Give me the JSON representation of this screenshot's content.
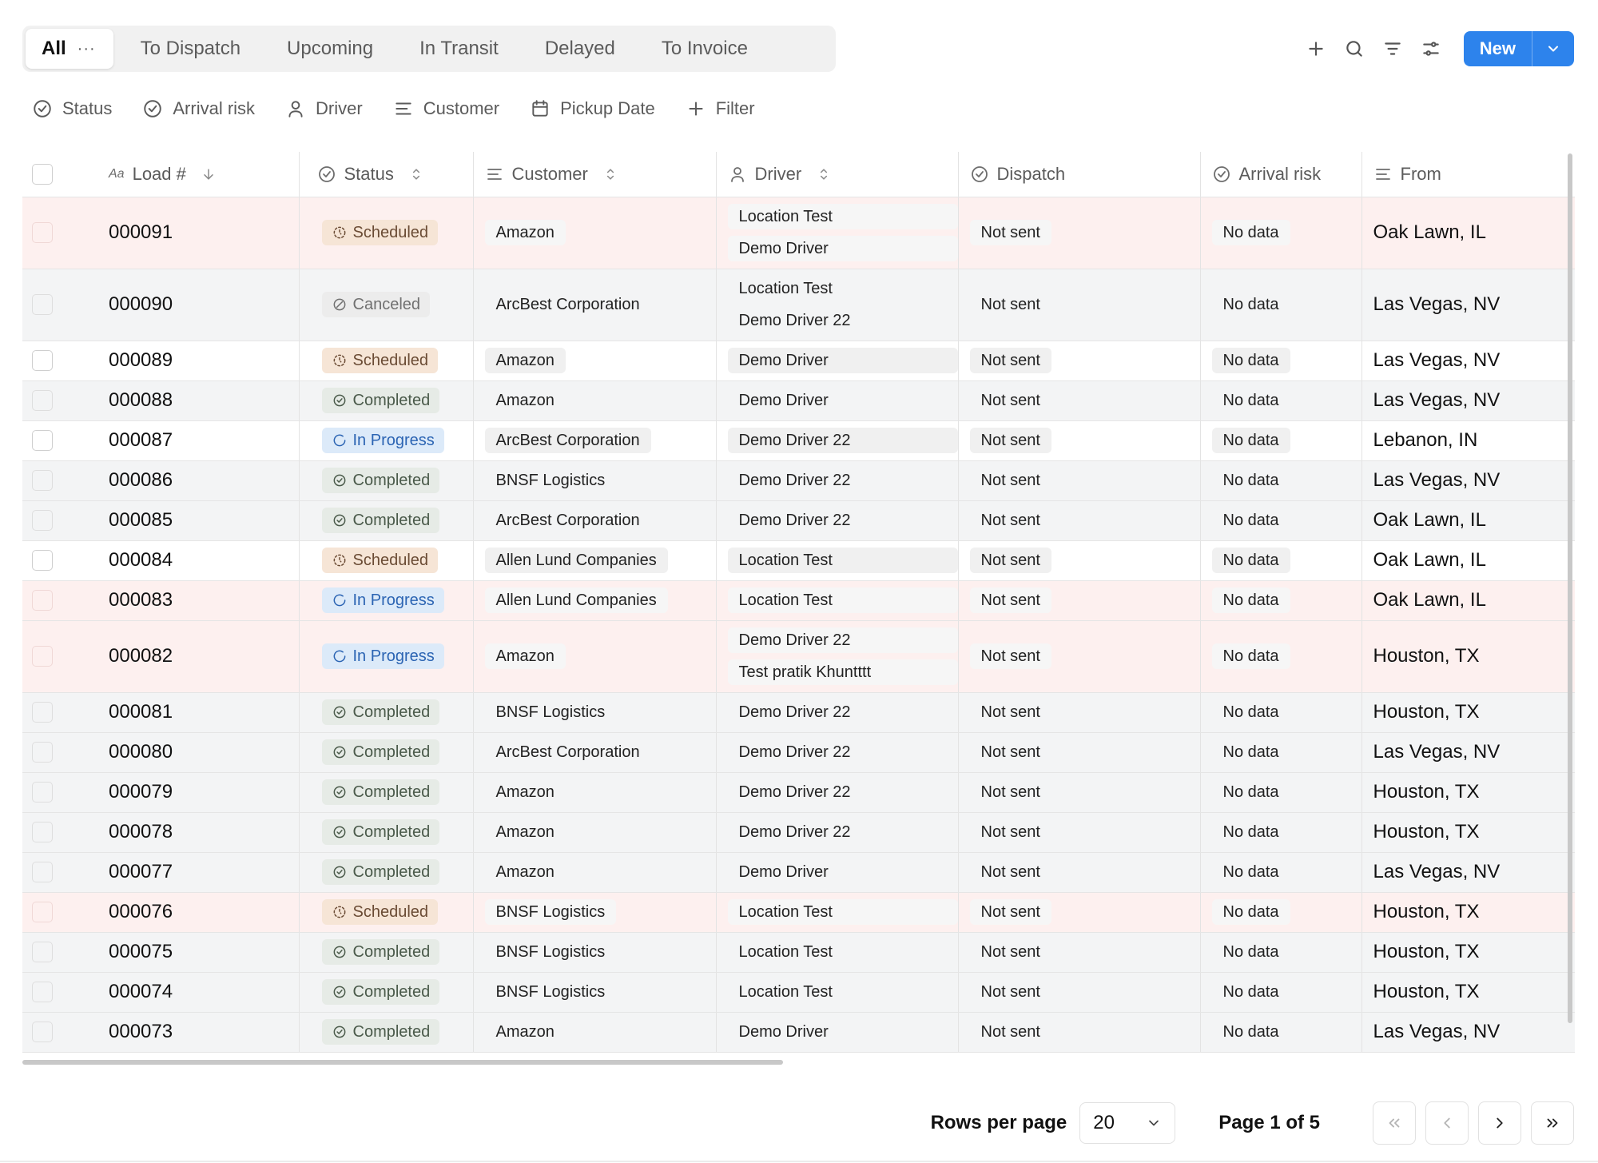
{
  "tabs": [
    {
      "label": "All",
      "more": "···",
      "active": true
    },
    {
      "label": "To Dispatch"
    },
    {
      "label": "Upcoming"
    },
    {
      "label": "In Transit"
    },
    {
      "label": "Delayed"
    },
    {
      "label": "To Invoice"
    }
  ],
  "toolbar": {
    "new_label": "New"
  },
  "filters": [
    "Status",
    "Arrival risk",
    "Driver",
    "Customer",
    "Pickup Date",
    "Filter"
  ],
  "columns": {
    "load": "Load #",
    "load_prefix": "Aa",
    "status": "Status",
    "customer": "Customer",
    "driver": "Driver",
    "dispatch": "Dispatch",
    "arrival_risk": "Arrival risk",
    "from": "From"
  },
  "rows": [
    {
      "load": "000091",
      "status": "Scheduled",
      "customer": "Amazon",
      "drivers": [
        "Location Test",
        "Demo Driver"
      ],
      "dispatch": "Not sent",
      "risk": "No data",
      "from": "Oak Lawn, IL",
      "bg": "pink"
    },
    {
      "load": "000090",
      "status": "Canceled",
      "customer": "ArcBest Corporation",
      "drivers": [
        "Location Test",
        "Demo Driver 22"
      ],
      "dispatch": "Not sent",
      "risk": "No data",
      "from": "Las Vegas, NV",
      "bg": "grey"
    },
    {
      "load": "000089",
      "status": "Scheduled",
      "customer": "Amazon",
      "drivers": [
        "Demo Driver"
      ],
      "dispatch": "Not sent",
      "risk": "No data",
      "from": "Las Vegas, NV",
      "bg": "white"
    },
    {
      "load": "000088",
      "status": "Completed",
      "customer": "Amazon",
      "drivers": [
        "Demo Driver"
      ],
      "dispatch": "Not sent",
      "risk": "No data",
      "from": "Las Vegas, NV",
      "bg": "grey"
    },
    {
      "load": "000087",
      "status": "In Progress",
      "customer": "ArcBest Corporation",
      "drivers": [
        "Demo Driver 22"
      ],
      "dispatch": "Not sent",
      "risk": "No data",
      "from": "Lebanon, IN",
      "bg": "white"
    },
    {
      "load": "000086",
      "status": "Completed",
      "customer": "BNSF Logistics",
      "drivers": [
        "Demo Driver 22"
      ],
      "dispatch": "Not sent",
      "risk": "No data",
      "from": "Las Vegas, NV",
      "bg": "grey"
    },
    {
      "load": "000085",
      "status": "Completed",
      "customer": "ArcBest Corporation",
      "drivers": [
        "Demo Driver 22"
      ],
      "dispatch": "Not sent",
      "risk": "No data",
      "from": "Oak Lawn, IL",
      "bg": "grey"
    },
    {
      "load": "000084",
      "status": "Scheduled",
      "customer": "Allen Lund Companies",
      "drivers": [
        "Location Test"
      ],
      "dispatch": "Not sent",
      "risk": "No data",
      "from": "Oak Lawn, IL",
      "bg": "white"
    },
    {
      "load": "000083",
      "status": "In Progress",
      "customer": "Allen Lund Companies",
      "drivers": [
        "Location Test"
      ],
      "dispatch": "Not sent",
      "risk": "No data",
      "from": "Oak Lawn, IL",
      "bg": "pink"
    },
    {
      "load": "000082",
      "status": "In Progress",
      "customer": "Amazon",
      "drivers": [
        "Demo Driver 22",
        "Test pratik Khuntttt"
      ],
      "dispatch": "Not sent",
      "risk": "No data",
      "from": "Houston, TX",
      "bg": "pink"
    },
    {
      "load": "000081",
      "status": "Completed",
      "customer": "BNSF Logistics",
      "drivers": [
        "Demo Driver 22"
      ],
      "dispatch": "Not sent",
      "risk": "No data",
      "from": "Houston, TX",
      "bg": "grey"
    },
    {
      "load": "000080",
      "status": "Completed",
      "customer": "ArcBest Corporation",
      "drivers": [
        "Demo Driver 22"
      ],
      "dispatch": "Not sent",
      "risk": "No data",
      "from": "Las Vegas, NV",
      "bg": "grey"
    },
    {
      "load": "000079",
      "status": "Completed",
      "customer": "Amazon",
      "drivers": [
        "Demo Driver 22"
      ],
      "dispatch": "Not sent",
      "risk": "No data",
      "from": "Houston, TX",
      "bg": "grey"
    },
    {
      "load": "000078",
      "status": "Completed",
      "customer": "Amazon",
      "drivers": [
        "Demo Driver 22"
      ],
      "dispatch": "Not sent",
      "risk": "No data",
      "from": "Houston, TX",
      "bg": "grey"
    },
    {
      "load": "000077",
      "status": "Completed",
      "customer": "Amazon",
      "drivers": [
        "Demo Driver"
      ],
      "dispatch": "Not sent",
      "risk": "No data",
      "from": "Las Vegas, NV",
      "bg": "grey"
    },
    {
      "load": "000076",
      "status": "Scheduled",
      "customer": "BNSF Logistics",
      "drivers": [
        "Location Test"
      ],
      "dispatch": "Not sent",
      "risk": "No data",
      "from": "Houston, TX",
      "bg": "pink"
    },
    {
      "load": "000075",
      "status": "Completed",
      "customer": "BNSF Logistics",
      "drivers": [
        "Location Test"
      ],
      "dispatch": "Not sent",
      "risk": "No data",
      "from": "Houston, TX",
      "bg": "grey"
    },
    {
      "load": "000074",
      "status": "Completed",
      "customer": "BNSF Logistics",
      "drivers": [
        "Location Test"
      ],
      "dispatch": "Not sent",
      "risk": "No data",
      "from": "Houston, TX",
      "bg": "grey"
    },
    {
      "load": "000073",
      "status": "Completed",
      "customer": "Amazon",
      "drivers": [
        "Demo Driver"
      ],
      "dispatch": "Not sent",
      "risk": "No data",
      "from": "Las Vegas, NV",
      "bg": "grey"
    }
  ],
  "pagination": {
    "rows_per_page_label": "Rows per page",
    "rows_per_page": "20",
    "page_info": "Page 1 of 5"
  },
  "colors": {
    "accent": "#2d83ec",
    "scheduled_bg": "#f6e5d6",
    "completed_bg": "#e6ebe6",
    "in_progress_bg": "#dceaf9",
    "canceled_bg": "#ececec",
    "row_alert": "#fdf0ef"
  }
}
